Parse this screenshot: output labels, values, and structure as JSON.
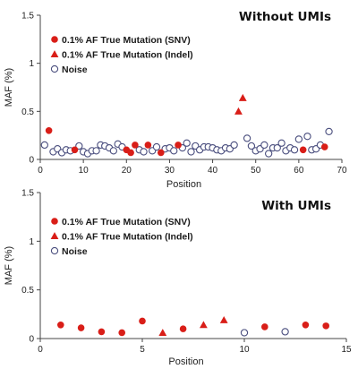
{
  "colors": {
    "red": "#d91e18",
    "noise": "#4a4e7e",
    "axis": "#444444"
  },
  "chart_data": [
    {
      "type": "scatter",
      "title": "Without UMIs",
      "xlabel": "Position",
      "ylabel": "MAF (%)",
      "xlim": [
        0,
        70
      ],
      "ylim": [
        0,
        1.5
      ],
      "xticks": [
        "0",
        "10",
        "20",
        "30",
        "40",
        "50",
        "60",
        "70"
      ],
      "yticks": [
        "0",
        "0.5",
        "1",
        "1.5"
      ],
      "legend_position": "top-left",
      "series": [
        {
          "name": "0.1% AF True Mutation (SNV)",
          "marker": "filled-circle",
          "x": [
            2,
            8,
            20,
            21,
            22,
            25,
            28,
            32,
            61,
            66
          ],
          "y": [
            0.3,
            0.1,
            0.1,
            0.07,
            0.15,
            0.15,
            0.07,
            0.15,
            0.1,
            0.13
          ]
        },
        {
          "name": "0.1% AF True Mutation (Indel)",
          "marker": "triangle",
          "x": [
            46,
            47
          ],
          "y": [
            0.5,
            0.64
          ]
        },
        {
          "name": "Noise",
          "marker": "open-circle",
          "x": [
            1,
            3,
            4,
            5,
            6,
            7,
            9,
            10,
            11,
            12,
            13,
            14,
            15,
            16,
            17,
            18,
            19,
            23,
            24,
            26,
            27,
            29,
            30,
            31,
            33,
            34,
            35,
            36,
            37,
            38,
            39,
            40,
            41,
            42,
            43,
            44,
            45,
            48,
            49,
            50,
            51,
            52,
            53,
            54,
            55,
            56,
            57,
            58,
            59,
            60,
            62,
            63,
            64,
            65,
            67
          ],
          "y": [
            0.15,
            0.08,
            0.11,
            0.07,
            0.1,
            0.09,
            0.14,
            0.08,
            0.06,
            0.09,
            0.09,
            0.15,
            0.14,
            0.12,
            0.09,
            0.16,
            0.13,
            0.1,
            0.08,
            0.09,
            0.13,
            0.11,
            0.12,
            0.09,
            0.12,
            0.17,
            0.08,
            0.14,
            0.1,
            0.13,
            0.13,
            0.12,
            0.1,
            0.09,
            0.12,
            0.11,
            0.15,
            0.22,
            0.14,
            0.09,
            0.11,
            0.15,
            0.06,
            0.12,
            0.12,
            0.17,
            0.09,
            0.12,
            0.1,
            0.21,
            0.24,
            0.1,
            0.11,
            0.15,
            0.29
          ]
        }
      ]
    },
    {
      "type": "scatter",
      "title": "With UMIs",
      "xlabel": "Position",
      "ylabel": "MAF (%)",
      "xlim": [
        0,
        15
      ],
      "ylim": [
        0,
        1.5
      ],
      "xticks": [
        "0",
        "5",
        "10",
        "15"
      ],
      "yticks": [
        "0",
        "0.5",
        "1",
        "1.5"
      ],
      "legend_position": "top-left",
      "series": [
        {
          "name": "0.1% AF True Mutation (SNV)",
          "marker": "filled-circle",
          "x": [
            1,
            2,
            3,
            4,
            5,
            7,
            11,
            13,
            14
          ],
          "y": [
            0.14,
            0.11,
            0.07,
            0.06,
            0.18,
            0.1,
            0.12,
            0.14,
            0.13
          ]
        },
        {
          "name": "0.1% AF True Mutation (Indel)",
          "marker": "triangle",
          "x": [
            6,
            8,
            9
          ],
          "y": [
            0.06,
            0.14,
            0.19
          ]
        },
        {
          "name": "Noise",
          "marker": "open-circle",
          "x": [
            10,
            12
          ],
          "y": [
            0.06,
            0.07
          ]
        }
      ]
    }
  ]
}
